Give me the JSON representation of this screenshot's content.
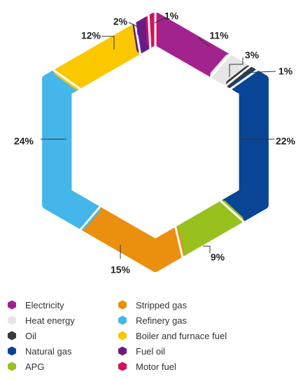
{
  "chart_data": {
    "type": "pie",
    "series": [
      {
        "name": "Electricity",
        "value": 11,
        "label": "11%",
        "color": "#a3238e"
      },
      {
        "name": "Heat energy",
        "value": 3,
        "label": "3%",
        "color": "#e6e6e6"
      },
      {
        "name": "Oil",
        "value": 1,
        "label": "1%",
        "color": "#3a3a3a"
      },
      {
        "name": "Natural gas",
        "value": 22,
        "label": "22%",
        "color": "#0a4595"
      },
      {
        "name": "APG",
        "value": 9,
        "label": "9%",
        "color": "#99c11e"
      },
      {
        "name": "Stripped gas",
        "value": 15,
        "label": "15%",
        "color": "#eb8f0f"
      },
      {
        "name": "Refinery gas",
        "value": 24,
        "label": "24%",
        "color": "#45b6ea"
      },
      {
        "name": "Boiler and furnace fuel",
        "value": 12,
        "label": "12%",
        "color": "#fbc800"
      },
      {
        "name": "Fuel oil",
        "value": 2,
        "label": "2%",
        "color": "#6a1b8a"
      },
      {
        "name": "Motor fuel",
        "value": 1,
        "label": "1%",
        "color": "#d6105b"
      }
    ],
    "legend_position": "bottom"
  },
  "legend": {
    "items": [
      {
        "label": "Electricity",
        "color": "#a3238e"
      },
      {
        "label": "Heat energy",
        "color": "#e6e6e6"
      },
      {
        "label": "Oil",
        "color": "#3a3a3a"
      },
      {
        "label": "Natural gas",
        "color": "#0a4595"
      },
      {
        "label": "APG",
        "color": "#99c11e"
      },
      {
        "label": "Stripped gas",
        "color": "#eb8f0f"
      },
      {
        "label": "Refinery gas",
        "color": "#45b6ea"
      },
      {
        "label": "Boiler and furnace fuel",
        "color": "#fbc800"
      },
      {
        "label": "Fuel oil",
        "color": "#6a1b8a"
      },
      {
        "label": "Motor fuel",
        "color": "#d6105b"
      }
    ]
  }
}
